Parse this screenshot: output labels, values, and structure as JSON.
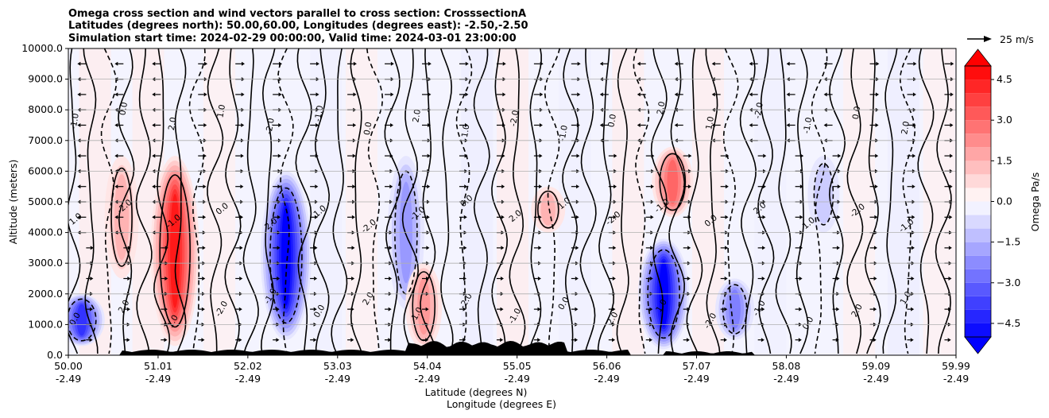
{
  "chart_data": {
    "type": "contour",
    "title_lines": [
      "Omega cross section and wind vectors parallel to cross section: CrosssectionA",
      "Latitudes (degrees north): 50.00,60.00, Longitudes (degrees east): -2.50,-2.50",
      "Simulation start time: 2024-02-29 00:00:00, Valid time: 2024-03-01 23:00:00"
    ],
    "ylabel": "Altitude (meters)",
    "xlabel_lat": "Latitude (degrees N)",
    "xlabel_lon": "Longitude (degrees E)",
    "ylim": [
      0,
      10000
    ],
    "y_ticks": [
      {
        "value": 0,
        "label": "0.0"
      },
      {
        "value": 1000,
        "label": "1000.0"
      },
      {
        "value": 2000,
        "label": "2000.0"
      },
      {
        "value": 3000,
        "label": "3000.0"
      },
      {
        "value": 4000,
        "label": "4000.0"
      },
      {
        "value": 5000,
        "label": "5000.0"
      },
      {
        "value": 6000,
        "label": "6000.0"
      },
      {
        "value": 7000,
        "label": "7000.0"
      },
      {
        "value": 8000,
        "label": "8000.0"
      },
      {
        "value": 9000,
        "label": "9000.0"
      },
      {
        "value": 10000,
        "label": "10000.0"
      }
    ],
    "xlim": [
      50.0,
      59.99
    ],
    "x_ticks": [
      {
        "lat": 50.0,
        "lat_label": "50.00",
        "lon_label": "-2.49"
      },
      {
        "lat": 51.01,
        "lat_label": "51.01",
        "lon_label": "-2.49"
      },
      {
        "lat": 52.02,
        "lat_label": "52.02",
        "lon_label": "-2.49"
      },
      {
        "lat": 53.03,
        "lat_label": "53.03",
        "lon_label": "-2.49"
      },
      {
        "lat": 54.04,
        "lat_label": "54.04",
        "lon_label": "-2.49"
      },
      {
        "lat": 55.05,
        "lat_label": "55.05",
        "lon_label": "-2.49"
      },
      {
        "lat": 56.06,
        "lat_label": "56.06",
        "lon_label": "-2.49"
      },
      {
        "lat": 57.07,
        "lat_label": "57.07",
        "lon_label": "-2.49"
      },
      {
        "lat": 58.08,
        "lat_label": "58.08",
        "lon_label": "-2.49"
      },
      {
        "lat": 59.09,
        "lat_label": "59.09",
        "lon_label": "-2.49"
      },
      {
        "lat": 59.99,
        "lat_label": "59.99",
        "lon_label": "-2.49"
      }
    ],
    "grid": "horizontal",
    "colorbar": {
      "label": "Omega Pa/s",
      "vmin": -5.0,
      "vmax": 5.0,
      "step": 0.5,
      "extend": "both",
      "ticks": [
        {
          "value": 4.5,
          "label": "4.5"
        },
        {
          "value": 3.0,
          "label": "3.0"
        },
        {
          "value": 1.5,
          "label": "1.5"
        },
        {
          "value": 0.0,
          "label": "0.0"
        },
        {
          "value": -1.5,
          "label": "−1.5"
        },
        {
          "value": -3.0,
          "label": "−3.0"
        },
        {
          "value": -4.5,
          "label": "−4.5"
        }
      ]
    },
    "quiver_key": {
      "label": "25 m/s"
    },
    "contour_levels_labeled": [
      "0.0",
      "1.0",
      "-1.0",
      "2.0",
      "-2.0"
    ],
    "features": [
      {
        "name": "downdraft-51.2N",
        "lat": 51.2,
        "alt_range": [
          300,
          6500
        ],
        "peak_omega": 4.5
      },
      {
        "name": "downdraft-50.6N",
        "lat": 50.6,
        "alt_range": [
          2500,
          6500
        ],
        "peak_omega": 1.5
      },
      {
        "name": "updraft-52.45N",
        "lat": 52.45,
        "alt_range": [
          500,
          6000
        ],
        "peak_omega": -5.0
      },
      {
        "name": "updraft-50.15N",
        "lat": 50.15,
        "alt_range": [
          300,
          2000
        ],
        "peak_omega": -4.0
      },
      {
        "name": "updraft-53.8N",
        "lat": 53.8,
        "alt_range": [
          1500,
          6500
        ],
        "peak_omega": -2.0
      },
      {
        "name": "downdraft-54.0N",
        "lat": 54.0,
        "alt_range": [
          200,
          3000
        ],
        "peak_omega": 2.0
      },
      {
        "name": "downdraft-55.4N",
        "lat": 55.4,
        "alt_range": [
          4000,
          5500
        ],
        "peak_omega": 1.5
      },
      {
        "name": "downdraft-56.8N",
        "lat": 56.8,
        "alt_range": [
          4500,
          6800
        ],
        "peak_omega": 3.0
      },
      {
        "name": "updraft-56.7N",
        "lat": 56.7,
        "alt_range": [
          200,
          3800
        ],
        "peak_omega": -5.0
      },
      {
        "name": "updraft-57.5N",
        "lat": 57.5,
        "alt_range": [
          500,
          2500
        ],
        "peak_omega": -2.5
      },
      {
        "name": "updraft-58.5N",
        "lat": 58.5,
        "alt_range": [
          4000,
          6500
        ],
        "peak_omega": -1.0
      }
    ]
  },
  "colors": {
    "neg_extreme": "#0000ff",
    "pos_extreme": "#ff0000",
    "zero": "#ffffff",
    "terrain": "#000000",
    "grid": "#b0b0b0"
  }
}
